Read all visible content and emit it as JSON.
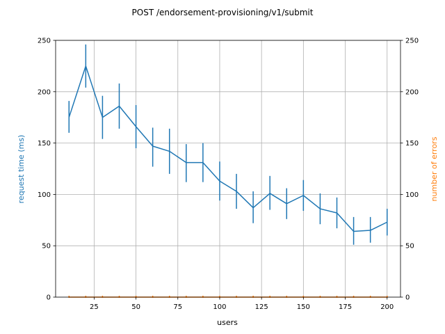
{
  "colors": {
    "request_time": "#1f77b4",
    "errors": "#ff7f0e",
    "grid": "#b0b0b0",
    "axis": "#000000"
  },
  "chart_data": {
    "type": "line",
    "title": "POST /endorsement-provisioning/v1/submit",
    "xlabel": "users",
    "ylabel_left": "request time (ms)",
    "ylabel_right": "number of errors",
    "xlim": [
      2,
      208
    ],
    "ylim_left": [
      0,
      250
    ],
    "ylim_right": [
      0,
      250
    ],
    "x_ticks": [
      25,
      50,
      75,
      100,
      125,
      150,
      175,
      200
    ],
    "y_ticks_left": [
      0,
      50,
      100,
      150,
      200,
      250
    ],
    "y_ticks_right": [
      0,
      50,
      100,
      150,
      200,
      250
    ],
    "grid": true,
    "x": [
      10,
      20,
      30,
      40,
      50,
      60,
      70,
      80,
      90,
      100,
      110,
      120,
      130,
      140,
      150,
      160,
      170,
      180,
      190,
      200
    ],
    "series": [
      {
        "axis": "left",
        "values": [
          175,
          225,
          175,
          186,
          166,
          147,
          142,
          131,
          131,
          113,
          103,
          87,
          101,
          91,
          99,
          86,
          82,
          64,
          65,
          73
        ],
        "err_low": [
          160,
          204,
          154,
          164,
          145,
          127,
          120,
          112,
          112,
          94,
          86,
          72,
          85,
          76,
          84,
          71,
          67,
          51,
          53,
          60
        ],
        "err_high": [
          191,
          246,
          196,
          208,
          187,
          165,
          164,
          149,
          150,
          132,
          120,
          103,
          118,
          106,
          114,
          101,
          97,
          78,
          78,
          86
        ]
      },
      {
        "axis": "right",
        "values": [
          0,
          0,
          0,
          0,
          0,
          0,
          0,
          0,
          0,
          0,
          0,
          0,
          0,
          0,
          0,
          0,
          0,
          0,
          0,
          0
        ]
      }
    ]
  }
}
